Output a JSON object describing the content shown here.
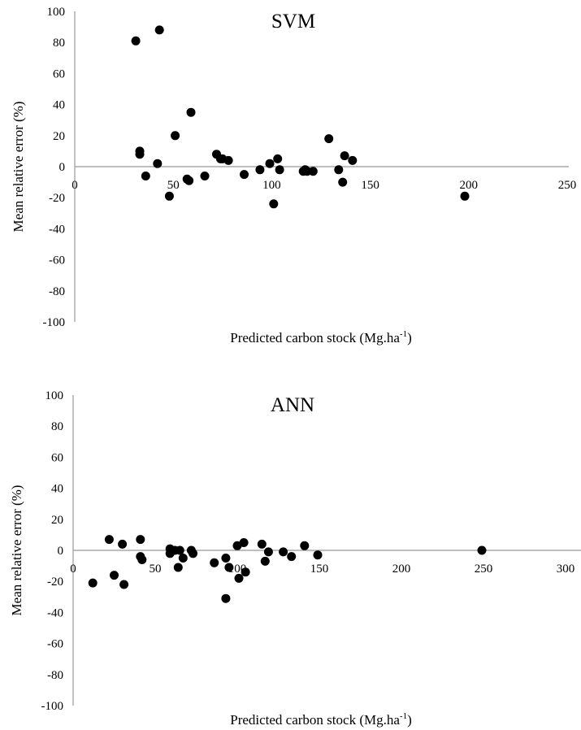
{
  "chart_data": [
    {
      "type": "scatter",
      "title": "SVM",
      "xlabel": "Predicted carbon stock (Mg.ha",
      "xlabel_sup": "-1",
      "xlabel_end": ")",
      "ylabel": "Mean relative error (%)",
      "xlim": [
        0,
        250
      ],
      "ylim": [
        -100,
        100
      ],
      "xticks": [
        "0",
        "50",
        "100",
        "150",
        "200",
        "250"
      ],
      "yticks": [
        "-100",
        "-80",
        "-60",
        "-40",
        "-20",
        "0",
        "20",
        "40",
        "60",
        "80",
        "100"
      ],
      "grid": false,
      "marker_color": "#000000",
      "points": [
        [
          31,
          81
        ],
        [
          43,
          88
        ],
        [
          33,
          10
        ],
        [
          33,
          8
        ],
        [
          36,
          -6
        ],
        [
          42,
          2
        ],
        [
          48,
          -19
        ],
        [
          51,
          20
        ],
        [
          57,
          -8
        ],
        [
          58,
          -9
        ],
        [
          59,
          35
        ],
        [
          66,
          -6
        ],
        [
          72,
          8
        ],
        [
          74,
          5
        ],
        [
          75,
          5
        ],
        [
          78,
          4
        ],
        [
          86,
          -5
        ],
        [
          94,
          -2
        ],
        [
          99,
          2
        ],
        [
          103,
          5
        ],
        [
          104,
          -2
        ],
        [
          116,
          -3
        ],
        [
          117,
          -2
        ],
        [
          118,
          -3
        ],
        [
          121,
          -3
        ],
        [
          129,
          18
        ],
        [
          134,
          -2
        ],
        [
          136,
          -10
        ],
        [
          137,
          7
        ],
        [
          141,
          4
        ],
        [
          101,
          -24
        ],
        [
          198,
          -19
        ]
      ]
    },
    {
      "type": "scatter",
      "title": "ANN",
      "xlabel": "Predicted carbon stock (Mg.ha",
      "xlabel_sup": "-1",
      "xlabel_end": ")",
      "ylabel": "Mean relative error (%)",
      "xlim": [
        0,
        300
      ],
      "ylim": [
        -100,
        100
      ],
      "xticks": [
        "0",
        "50",
        "100",
        "150",
        "200",
        "250",
        "300"
      ],
      "yticks": [
        "-100",
        "-80",
        "-60",
        "-40",
        "-20",
        "0",
        "20",
        "40",
        "60",
        "80",
        "100"
      ],
      "grid": false,
      "marker_color": "#000000",
      "points": [
        [
          12,
          -21
        ],
        [
          22,
          7
        ],
        [
          25,
          -16
        ],
        [
          30,
          4
        ],
        [
          31,
          -22
        ],
        [
          41,
          7
        ],
        [
          41,
          -4
        ],
        [
          42,
          -6
        ],
        [
          59,
          -2
        ],
        [
          59,
          1
        ],
        [
          62,
          0
        ],
        [
          64,
          -11
        ],
        [
          65,
          0
        ],
        [
          67,
          -5
        ],
        [
          72,
          0
        ],
        [
          73,
          -2
        ],
        [
          86,
          -8
        ],
        [
          93,
          -5
        ],
        [
          93,
          -31
        ],
        [
          95,
          -11
        ],
        [
          100,
          3
        ],
        [
          101,
          -18
        ],
        [
          104,
          5
        ],
        [
          105,
          -14
        ],
        [
          115,
          4
        ],
        [
          117,
          -7
        ],
        [
          119,
          -1
        ],
        [
          128,
          -1
        ],
        [
          133,
          -4
        ],
        [
          141,
          3
        ],
        [
          149,
          -3
        ],
        [
          249,
          0
        ]
      ]
    }
  ]
}
